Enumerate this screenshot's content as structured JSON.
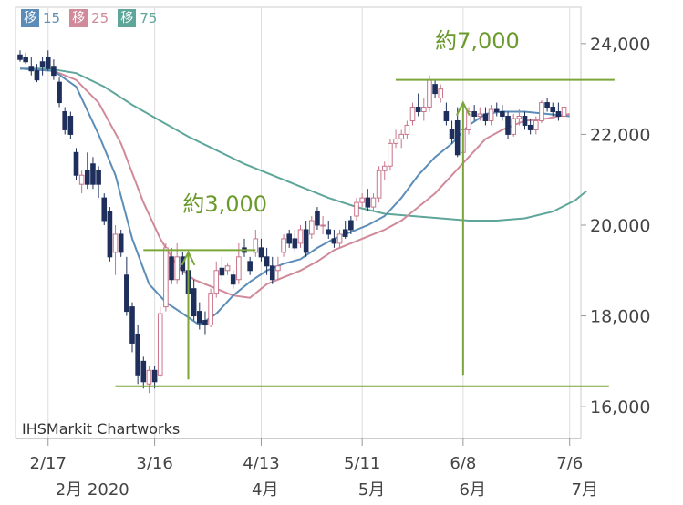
{
  "chart_data": {
    "type": "candlestick",
    "credit": "IHSMarkit Chartworks",
    "legend": [
      {
        "box": "移",
        "label": "15",
        "color": "#5b8db8"
      },
      {
        "box": "移",
        "label": "25",
        "color": "#d08a99"
      },
      {
        "box": "移",
        "label": "75",
        "color": "#5fa69a"
      }
    ],
    "ylim": [
      15300,
      24800
    ],
    "y_ticks": [
      {
        "value": 24000,
        "label": "24,000"
      },
      {
        "value": 22000,
        "label": "22,000"
      },
      {
        "value": 20000,
        "label": "20,000"
      },
      {
        "value": 18000,
        "label": "18,000"
      },
      {
        "value": 16000,
        "label": "16,000"
      }
    ],
    "x_ticks": [
      {
        "day": 5,
        "label": "2/17"
      },
      {
        "day": 24,
        "label": "3/16"
      },
      {
        "day": 43,
        "label": "4/13"
      },
      {
        "day": 61,
        "label": "5/11"
      },
      {
        "day": 79,
        "label": "6/8"
      },
      {
        "day": 98,
        "label": "7/6"
      }
    ],
    "month_labels": [
      {
        "day": 5,
        "label": "2月 2020"
      },
      {
        "day": 40,
        "label": "4月"
      },
      {
        "day": 59,
        "label": "5月"
      },
      {
        "day": 77,
        "label": "6月"
      },
      {
        "day": 97,
        "label": "7月"
      }
    ],
    "annotations": [
      {
        "text": "約3,000",
        "x_day": 29,
        "y_value": 20300
      },
      {
        "text": "約7,000",
        "x_day": 74,
        "y_value": 23900
      }
    ],
    "hlines": [
      {
        "value": 16450,
        "from_day": 17,
        "to_day": 105
      },
      {
        "value": 19450,
        "from_day": 22,
        "to_day": 42
      },
      {
        "value": 23200,
        "from_day": 67,
        "to_day": 106
      }
    ],
    "arrows": [
      {
        "day": 30,
        "from": 16600,
        "to": 19400
      },
      {
        "day": 79,
        "from": 16700,
        "to": 22700
      }
    ],
    "candles": [
      [
        23750,
        23850,
        23600,
        23650
      ],
      [
        23700,
        23800,
        23550,
        23600
      ],
      [
        23500,
        23700,
        23300,
        23400
      ],
      [
        23400,
        23550,
        23150,
        23200
      ],
      [
        23600,
        23700,
        23300,
        23500
      ],
      [
        23700,
        23850,
        23400,
        23450
      ],
      [
        23500,
        23650,
        23200,
        23300
      ],
      [
        23150,
        23250,
        22600,
        22700
      ],
      [
        22500,
        22600,
        22000,
        22100
      ],
      [
        22400,
        22500,
        21900,
        22000
      ],
      [
        21600,
        21700,
        21000,
        21100
      ],
      [
        20900,
        21200,
        20700,
        21100
      ],
      [
        21200,
        21600,
        20800,
        20900
      ],
      [
        21350,
        21500,
        20800,
        20900
      ],
      [
        21200,
        21300,
        20600,
        20900
      ],
      [
        20600,
        20700,
        20000,
        20100
      ],
      [
        20300,
        20400,
        19200,
        19300
      ],
      [
        19400,
        20000,
        18900,
        19800
      ],
      [
        19800,
        19900,
        19300,
        19400
      ],
      [
        18900,
        19300,
        18000,
        18100
      ],
      [
        18200,
        18300,
        17200,
        17400
      ],
      [
        17600,
        17800,
        16500,
        16700
      ],
      [
        17000,
        17100,
        16400,
        16550
      ],
      [
        16500,
        16900,
        16300,
        16800
      ],
      [
        16800,
        16900,
        16400,
        16550
      ],
      [
        16700,
        18200,
        16650,
        18050
      ],
      [
        18200,
        19600,
        18100,
        19500
      ],
      [
        19300,
        19500,
        18700,
        18800
      ],
      [
        18800,
        19600,
        18700,
        19300
      ],
      [
        19300,
        19400,
        18900,
        19000
      ],
      [
        19000,
        19100,
        18400,
        18500
      ],
      [
        18600,
        18800,
        17900,
        18000
      ],
      [
        18100,
        18300,
        17700,
        17850
      ],
      [
        17900,
        18100,
        17600,
        17800
      ],
      [
        17800,
        18600,
        17750,
        18500
      ],
      [
        18500,
        19200,
        18400,
        19000
      ],
      [
        19050,
        19300,
        18800,
        18900
      ],
      [
        19000,
        19150,
        18900,
        19100
      ],
      [
        18900,
        19000,
        18600,
        18700
      ],
      [
        18800,
        19600,
        18700,
        19300
      ],
      [
        19500,
        19700,
        19300,
        19400
      ],
      [
        19200,
        19300,
        18900,
        19000
      ],
      [
        19400,
        19900,
        19300,
        19700
      ],
      [
        19500,
        19700,
        19200,
        19300
      ],
      [
        19300,
        19500,
        18900,
        19100
      ],
      [
        19100,
        19300,
        18700,
        18800
      ],
      [
        19000,
        19300,
        18800,
        19100
      ],
      [
        19400,
        19800,
        19300,
        19700
      ],
      [
        19800,
        19900,
        19500,
        19600
      ],
      [
        19700,
        19900,
        19400,
        19500
      ],
      [
        19600,
        20000,
        19500,
        19900
      ],
      [
        19900,
        20100,
        19300,
        19400
      ],
      [
        19800,
        20200,
        19700,
        20100
      ],
      [
        20300,
        20400,
        19900,
        20000
      ],
      [
        20000,
        20200,
        19800,
        20000
      ],
      [
        19900,
        20100,
        19700,
        19800
      ],
      [
        19700,
        19900,
        19500,
        19600
      ],
      [
        19600,
        19900,
        19500,
        19800
      ],
      [
        19900,
        20100,
        19700,
        19750
      ],
      [
        20100,
        20200,
        19800,
        19900
      ],
      [
        20200,
        20600,
        20100,
        20500
      ],
      [
        20500,
        20700,
        20400,
        20600
      ],
      [
        20600,
        20800,
        20300,
        20400
      ],
      [
        20400,
        20700,
        20300,
        20600
      ],
      [
        20600,
        21300,
        20500,
        21200
      ],
      [
        21200,
        21400,
        21000,
        21300
      ],
      [
        21300,
        21900,
        21200,
        21800
      ],
      [
        21800,
        22100,
        21700,
        21900
      ],
      [
        21900,
        22100,
        21700,
        22000
      ],
      [
        22000,
        22300,
        21900,
        22200
      ],
      [
        22300,
        22700,
        22200,
        22600
      ],
      [
        22600,
        22900,
        22400,
        22500
      ],
      [
        22500,
        22800,
        22300,
        22600
      ],
      [
        22600,
        23300,
        22500,
        23200
      ],
      [
        23100,
        23200,
        22800,
        22900
      ],
      [
        22800,
        23100,
        22700,
        23000
      ],
      [
        22500,
        22700,
        22200,
        22300
      ],
      [
        22100,
        22300,
        21800,
        21900
      ],
      [
        22300,
        22600,
        21500,
        21550
      ],
      [
        21600,
        22200,
        21500,
        22100
      ],
      [
        22100,
        22600,
        22000,
        22500
      ],
      [
        22500,
        22650,
        22300,
        22400
      ],
      [
        22400,
        22600,
        22300,
        22450
      ],
      [
        22450,
        22600,
        22200,
        22300
      ],
      [
        22300,
        22650,
        22200,
        22550
      ],
      [
        22550,
        22700,
        22400,
        22500
      ],
      [
        22500,
        22650,
        22300,
        22400
      ],
      [
        22400,
        22500,
        21900,
        22000
      ],
      [
        22000,
        22450,
        21950,
        22350
      ],
      [
        22350,
        22550,
        22200,
        22400
      ],
      [
        22400,
        22500,
        22100,
        22200
      ],
      [
        22200,
        22350,
        22000,
        22100
      ],
      [
        22100,
        22400,
        22000,
        22300
      ],
      [
        22300,
        22750,
        22250,
        22700
      ],
      [
        22700,
        22800,
        22500,
        22600
      ],
      [
        22600,
        22700,
        22400,
        22500
      ],
      [
        22500,
        22700,
        22300,
        22400
      ],
      [
        22400,
        22700,
        22300,
        22600
      ]
    ],
    "ma15": [
      [
        0,
        23450
      ],
      [
        6,
        23400
      ],
      [
        10,
        23050
      ],
      [
        14,
        22000
      ],
      [
        17,
        21100
      ],
      [
        20,
        19700
      ],
      [
        23,
        18700
      ],
      [
        26,
        18300
      ],
      [
        29,
        18050
      ],
      [
        32,
        17800
      ],
      [
        35,
        18050
      ],
      [
        38,
        18450
      ],
      [
        41,
        18750
      ],
      [
        44,
        19000
      ],
      [
        47,
        19150
      ],
      [
        50,
        19250
      ],
      [
        53,
        19500
      ],
      [
        56,
        19700
      ],
      [
        59,
        19850
      ],
      [
        62,
        20000
      ],
      [
        65,
        20200
      ],
      [
        68,
        20600
      ],
      [
        71,
        21100
      ],
      [
        74,
        21500
      ],
      [
        77,
        21800
      ],
      [
        80,
        22200
      ],
      [
        83,
        22450
      ],
      [
        86,
        22500
      ],
      [
        90,
        22500
      ],
      [
        94,
        22450
      ],
      [
        98,
        22400
      ]
    ],
    "ma25": [
      [
        0,
        23450
      ],
      [
        6,
        23400
      ],
      [
        10,
        23200
      ],
      [
        14,
        22700
      ],
      [
        18,
        21800
      ],
      [
        22,
        20500
      ],
      [
        25,
        19700
      ],
      [
        28,
        19100
      ],
      [
        31,
        18800
      ],
      [
        35,
        18600
      ],
      [
        38,
        18450
      ],
      [
        41,
        18400
      ],
      [
        44,
        18700
      ],
      [
        47,
        18850
      ],
      [
        50,
        19000
      ],
      [
        53,
        19200
      ],
      [
        56,
        19450
      ],
      [
        59,
        19600
      ],
      [
        62,
        19750
      ],
      [
        65,
        19900
      ],
      [
        68,
        20100
      ],
      [
        71,
        20400
      ],
      [
        74,
        20700
      ],
      [
        77,
        21100
      ],
      [
        80,
        21500
      ],
      [
        83,
        21900
      ],
      [
        86,
        22100
      ],
      [
        90,
        22300
      ],
      [
        94,
        22350
      ],
      [
        98,
        22450
      ]
    ],
    "ma75": [
      [
        0,
        23450
      ],
      [
        5,
        23450
      ],
      [
        10,
        23350
      ],
      [
        15,
        23050
      ],
      [
        20,
        22650
      ],
      [
        25,
        22300
      ],
      [
        30,
        21950
      ],
      [
        35,
        21650
      ],
      [
        40,
        21350
      ],
      [
        45,
        21100
      ],
      [
        50,
        20850
      ],
      [
        55,
        20600
      ],
      [
        60,
        20400
      ],
      [
        65,
        20250
      ],
      [
        70,
        20200
      ],
      [
        75,
        20150
      ],
      [
        80,
        20100
      ],
      [
        85,
        20100
      ],
      [
        90,
        20150
      ],
      [
        95,
        20300
      ],
      [
        99,
        20550
      ],
      [
        101,
        20750
      ]
    ]
  }
}
